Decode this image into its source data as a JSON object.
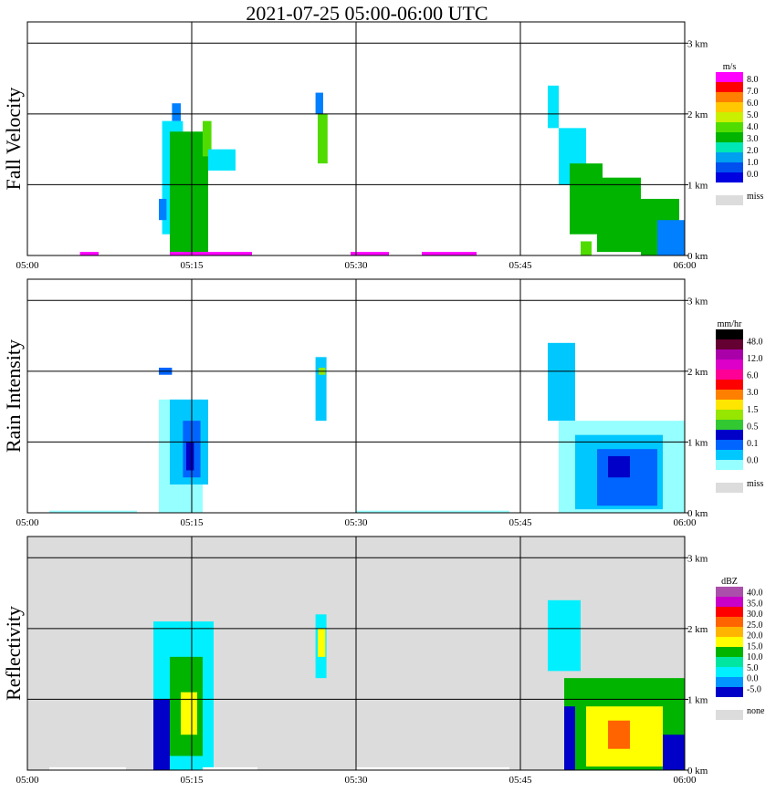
{
  "title": "2021-07-25   05:00-06:00 UTC",
  "x_ticks": [
    "05:00",
    "05:15",
    "05:30",
    "05:45",
    "06:00"
  ],
  "y_ticks": [
    "0 km",
    "1 km",
    "2 km",
    "3 km"
  ],
  "chart_data": [
    {
      "type": "heatmap",
      "ylabel": "Fall Velocity",
      "background": "#ffffff",
      "colorbar": {
        "unit": "m/s",
        "labels": [
          "8.0",
          "7.0",
          "6.0",
          "5.0",
          "4.0",
          "3.0",
          "2.0",
          "1.0",
          "0.0"
        ],
        "colors": [
          "#ff00ff",
          "#ff0000",
          "#ff8000",
          "#ffc800",
          "#c8f000",
          "#50dc00",
          "#00b400",
          "#00e6b4",
          "#00a0f0",
          "#0050f0",
          "#0000e0"
        ],
        "missing_label": "miss",
        "missing_color": "#dcdcdc"
      },
      "cells": [
        {
          "t0": 12.3,
          "t1": 14.2,
          "h0": 0.3,
          "h1": 1.9,
          "color": "#00e6ff"
        },
        {
          "t0": 13.0,
          "t1": 16.5,
          "h0": 0.05,
          "h1": 1.75,
          "color": "#00b400"
        },
        {
          "t0": 13.2,
          "t1": 14.0,
          "h0": 1.9,
          "h1": 2.15,
          "color": "#0080ff"
        },
        {
          "t0": 14.2,
          "t1": 15.8,
          "h0": 0.0,
          "h1": 1.5,
          "color": "#00b400"
        },
        {
          "t0": 16.0,
          "t1": 16.8,
          "h0": 1.4,
          "h1": 1.9,
          "color": "#50dc00"
        },
        {
          "t0": 12.0,
          "t1": 12.7,
          "h0": 0.5,
          "h1": 0.8,
          "color": "#0080ff"
        },
        {
          "t0": 16.5,
          "t1": 19.0,
          "h0": 1.2,
          "h1": 1.5,
          "color": "#00e6ff"
        },
        {
          "t0": 26.5,
          "t1": 27.4,
          "h0": 1.3,
          "h1": 2.0,
          "color": "#50dc00"
        },
        {
          "t0": 26.3,
          "t1": 27.0,
          "h0": 2.0,
          "h1": 2.3,
          "color": "#0080ff"
        },
        {
          "t0": 47.5,
          "t1": 48.5,
          "h0": 1.8,
          "h1": 2.4,
          "color": "#00e6ff"
        },
        {
          "t0": 48.5,
          "t1": 51.0,
          "h0": 1.0,
          "h1": 1.8,
          "color": "#00e6ff"
        },
        {
          "t0": 49.5,
          "t1": 52.5,
          "h0": 0.3,
          "h1": 1.3,
          "color": "#00b400"
        },
        {
          "t0": 52.0,
          "t1": 56.0,
          "h0": 0.05,
          "h1": 1.1,
          "color": "#00b400"
        },
        {
          "t0": 56.0,
          "t1": 59.5,
          "h0": 0.0,
          "h1": 0.8,
          "color": "#00b400"
        },
        {
          "t0": 57.5,
          "t1": 60.0,
          "h0": 0.0,
          "h1": 0.5,
          "color": "#0080ff"
        },
        {
          "t0": 50.5,
          "t1": 51.5,
          "h0": 0.0,
          "h1": 0.2,
          "color": "#50dc00"
        },
        {
          "t0": 4.8,
          "t1": 6.5,
          "h0": 0.0,
          "h1": 0.05,
          "color": "#ff00ff"
        },
        {
          "t0": 13.0,
          "t1": 20.5,
          "h0": 0.0,
          "h1": 0.05,
          "color": "#ff00ff"
        },
        {
          "t0": 29.5,
          "t1": 33.0,
          "h0": 0.0,
          "h1": 0.05,
          "color": "#ff00ff"
        },
        {
          "t0": 36.0,
          "t1": 41.0,
          "h0": 0.0,
          "h1": 0.05,
          "color": "#ff00ff"
        }
      ]
    },
    {
      "type": "heatmap",
      "ylabel": "Rain Intensity",
      "background": "#ffffff",
      "colorbar": {
        "unit": "mm/hr",
        "labels": [
          "48.0",
          "12.0",
          "6.0",
          "3.0",
          "1.5",
          "0.5",
          "0.1",
          "0.0"
        ],
        "colors": [
          "#000000",
          "#640032",
          "#aa00aa",
          "#dc00c8",
          "#ff0096",
          "#ff0000",
          "#ff8000",
          "#ffe600",
          "#96e600",
          "#32c832",
          "#0000c8",
          "#0064ff",
          "#00c8ff",
          "#96ffff"
        ],
        "missing_label": "miss",
        "missing_color": "#dcdcdc"
      },
      "cells": [
        {
          "t0": 12.0,
          "t1": 16.0,
          "h0": 0.0,
          "h1": 1.6,
          "color": "#96ffff"
        },
        {
          "t0": 13.0,
          "t1": 16.5,
          "h0": 0.4,
          "h1": 1.6,
          "color": "#00c8ff"
        },
        {
          "t0": 14.2,
          "t1": 15.8,
          "h0": 0.5,
          "h1": 1.3,
          "color": "#0064ff"
        },
        {
          "t0": 14.5,
          "t1": 15.2,
          "h0": 0.6,
          "h1": 1.0,
          "color": "#0000c8"
        },
        {
          "t0": 12.0,
          "t1": 13.2,
          "h0": 1.95,
          "h1": 2.05,
          "color": "#0064ff"
        },
        {
          "t0": 26.3,
          "t1": 27.3,
          "h0": 1.3,
          "h1": 2.2,
          "color": "#00c8ff"
        },
        {
          "t0": 26.6,
          "t1": 27.2,
          "h0": 1.95,
          "h1": 2.05,
          "color": "#96e600"
        },
        {
          "t0": 47.5,
          "t1": 50.0,
          "h0": 1.3,
          "h1": 2.4,
          "color": "#00c8ff"
        },
        {
          "t0": 48.5,
          "t1": 60.0,
          "h0": 0.0,
          "h1": 1.3,
          "color": "#96ffff"
        },
        {
          "t0": 50.0,
          "t1": 58.0,
          "h0": 0.05,
          "h1": 1.1,
          "color": "#00c8ff"
        },
        {
          "t0": 52.0,
          "t1": 57.5,
          "h0": 0.1,
          "h1": 0.9,
          "color": "#0064ff"
        },
        {
          "t0": 53.0,
          "t1": 55.0,
          "h0": 0.5,
          "h1": 0.8,
          "color": "#0000c8"
        },
        {
          "t0": 2.0,
          "t1": 10.0,
          "h0": 0.0,
          "h1": 0.03,
          "color": "#96ffff"
        },
        {
          "t0": 30.0,
          "t1": 44.0,
          "h0": 0.0,
          "h1": 0.03,
          "color": "#96ffff"
        }
      ]
    },
    {
      "type": "heatmap",
      "ylabel": "Reflectivity",
      "background": "#dcdcdc",
      "colorbar": {
        "unit": "dBZ",
        "labels": [
          "40.0",
          "35.0",
          "30.0",
          "25.0",
          "20.0",
          "15.0",
          "10.0",
          "5.0",
          "0.0",
          "-5.0"
        ],
        "colors": [
          "#aa50aa",
          "#c800c8",
          "#ff0000",
          "#ff6400",
          "#ffb400",
          "#ffff00",
          "#00b400",
          "#00e6a0",
          "#00f0ff",
          "#0096ff",
          "#0000c8"
        ],
        "missing_label": "none",
        "missing_color": "#dcdcdc"
      },
      "cells": [
        {
          "t0": 11.5,
          "t1": 17.0,
          "h0": 0.0,
          "h1": 2.1,
          "color": "#00f0ff"
        },
        {
          "t0": 11.5,
          "t1": 13.0,
          "h0": 0.0,
          "h1": 1.0,
          "color": "#0000c8"
        },
        {
          "t0": 13.0,
          "t1": 16.0,
          "h0": 0.2,
          "h1": 1.6,
          "color": "#00b400"
        },
        {
          "t0": 14.0,
          "t1": 15.5,
          "h0": 0.5,
          "h1": 1.1,
          "color": "#ffff00"
        },
        {
          "t0": 26.3,
          "t1": 27.3,
          "h0": 1.3,
          "h1": 2.2,
          "color": "#00f0ff"
        },
        {
          "t0": 26.5,
          "t1": 27.2,
          "h0": 1.6,
          "h1": 2.0,
          "color": "#ffff00"
        },
        {
          "t0": 47.5,
          "t1": 50.5,
          "h0": 1.4,
          "h1": 2.4,
          "color": "#00f0ff"
        },
        {
          "t0": 49.0,
          "t1": 60.0,
          "h0": 0.0,
          "h1": 1.3,
          "color": "#00b400"
        },
        {
          "t0": 49.0,
          "t1": 50.0,
          "h0": 0.0,
          "h1": 0.9,
          "color": "#0000c8"
        },
        {
          "t0": 51.0,
          "t1": 58.0,
          "h0": 0.05,
          "h1": 0.9,
          "color": "#ffff00"
        },
        {
          "t0": 53.0,
          "t1": 55.0,
          "h0": 0.3,
          "h1": 0.7,
          "color": "#ff6400"
        },
        {
          "t0": 58.0,
          "t1": 60.0,
          "h0": 0.0,
          "h1": 0.5,
          "color": "#0000c8"
        },
        {
          "t0": 2.0,
          "t1": 9.0,
          "h0": 0.0,
          "h1": 0.04,
          "color": "#ffffff"
        },
        {
          "t0": 16.0,
          "t1": 21.0,
          "h0": 0.0,
          "h1": 0.04,
          "color": "#ffffff"
        },
        {
          "t0": 30.0,
          "t1": 44.0,
          "h0": 0.0,
          "h1": 0.04,
          "color": "#ffffff"
        }
      ]
    }
  ],
  "x_range_minutes": [
    0,
    60
  ],
  "y_range_km": [
    0,
    3.3
  ]
}
